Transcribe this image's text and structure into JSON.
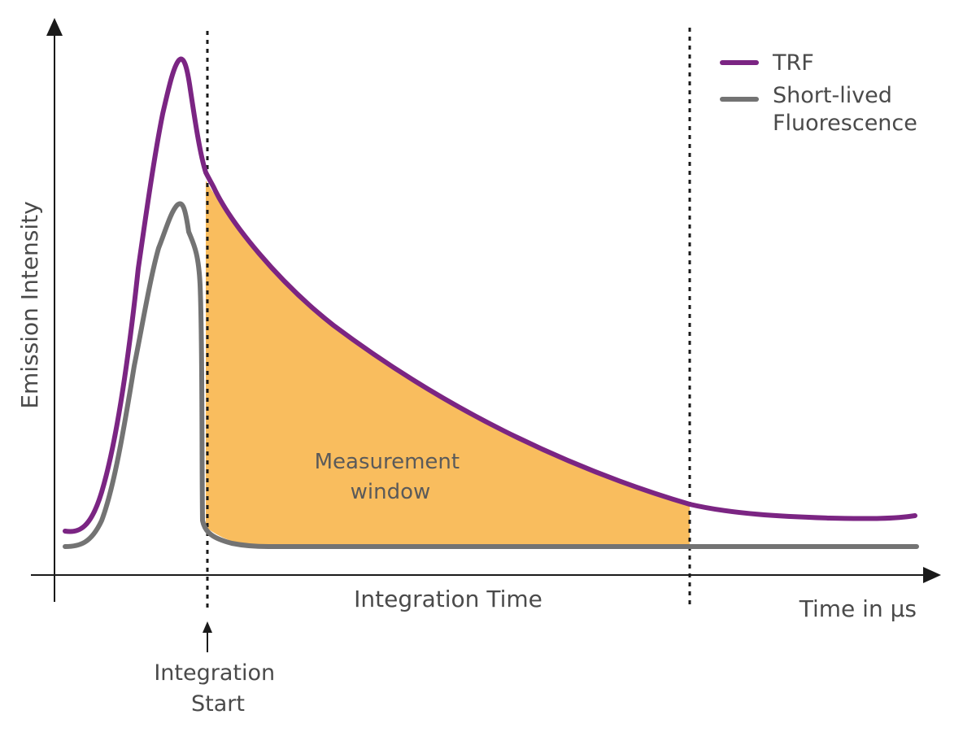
{
  "diagram": {
    "y_axis_label": "Emission Intensity",
    "x_axis_label": "Time in µs",
    "integration_time_label": "Integration Time",
    "measurement_window_label": [
      "Measurement",
      "window"
    ],
    "integration_start_label": [
      "Integration",
      "Start"
    ]
  },
  "legend": [
    {
      "label_lines": [
        "TRF"
      ],
      "color": "#7b2583"
    },
    {
      "label_lines": [
        "Short-lived",
        "Fluorescence"
      ],
      "color": "#737373"
    }
  ],
  "colors": {
    "axis": "#1a1a1a",
    "marker_lines": "#1a1a1a",
    "window_fill": "#f9bd5e",
    "text": "#4a4a4a"
  }
}
